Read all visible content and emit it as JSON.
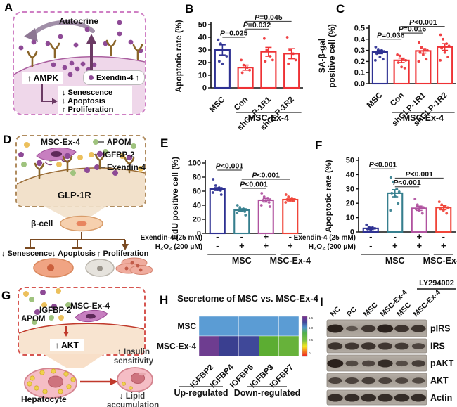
{
  "panel_a": {
    "label": "A",
    "autocrine": "Autocrine",
    "ampk": "↑ AMPK",
    "exendin": "Exendin-4 ↑",
    "effects": [
      "↓ Senescence",
      "↓ Apoptosis",
      "↑ Proliferation"
    ]
  },
  "panel_d": {
    "label": "D",
    "cell": "MSC-Ex-4",
    "legend": [
      "APOM",
      "IGFBP-2",
      "Exendin-4"
    ],
    "legend_colors": [
      "#9fc37e",
      "#ecc05c",
      "#8e4a96"
    ],
    "receptor": "GLP-1R",
    "beta_cell": "β-cell",
    "effects": [
      "↓ Senescence",
      "↓ Apoptosis",
      "↑ Proliferation"
    ]
  },
  "panel_g": {
    "label": "G",
    "igfbp2": "IGFBP-2",
    "apom": "APOM",
    "cell": "MSC-Ex-4",
    "akt": "↑ AKT",
    "hepatocyte": "Hepatocyte",
    "insulin_line1": "↑ Insulin",
    "insulin_line2": "sensitivity",
    "lipid_line1": "↓ Lipid",
    "lipid_line2": "accumulation"
  },
  "panel_labels": {
    "B": "B",
    "C": "C",
    "E": "E",
    "F": "F",
    "H": "H",
    "I": "I"
  },
  "chart_data": [
    {
      "panel": "B",
      "type": "bar",
      "ylabel": "Apoptotic rate (%)",
      "ylim": [
        0,
        50
      ],
      "ytick_vals": [
        0,
        10,
        20,
        30,
        40,
        50
      ],
      "ytick_labels": [
        "0",
        "10",
        "20",
        "30",
        "40",
        "50"
      ],
      "categories": [
        "MSC",
        "Con",
        "shGLP-1R1",
        "shGLP-1R2"
      ],
      "values": [
        30,
        16,
        28.5,
        27
      ],
      "errors": [
        4,
        2,
        3.5,
        4
      ],
      "bar_colors": [
        "#2e3192",
        "#ee3235",
        "#ee3235",
        "#ee3235"
      ],
      "points": [
        [
          38,
          35,
          30,
          25,
          21,
          19
        ],
        [
          22,
          18,
          16,
          14,
          12
        ],
        [
          39,
          30,
          25,
          22,
          21
        ],
        [
          40,
          30,
          27,
          22,
          19
        ]
      ],
      "comparisons": [
        {
          "from": 0,
          "to": 1,
          "label": "P=0.025",
          "y": 40
        },
        {
          "from": 1,
          "to": 2,
          "label": "P=0.032",
          "y": 46.5
        },
        {
          "from": 1,
          "to": 3,
          "label": "P=0.045",
          "y": 52.5
        }
      ],
      "groups": [
        {
          "label": "MSC-Ex-4",
          "from": 1,
          "to": 3
        }
      ]
    },
    {
      "panel": "C",
      "type": "bar",
      "ylabel_lines": [
        "SA-β-gal",
        "positive cell (%)"
      ],
      "ylim": [
        0,
        0.5
      ],
      "ytick_vals": [
        0,
        0.1,
        0.2,
        0.3,
        0.4,
        0.5
      ],
      "ytick_labels": [
        "0.0",
        "0.1",
        "0.2",
        "0.3",
        "0.4",
        "0.5"
      ],
      "categories": [
        "MSC",
        "Con",
        "shGLP-1R1",
        "shGLP-1R2"
      ],
      "values": [
        0.285,
        0.21,
        0.295,
        0.33
      ],
      "errors": [
        0.015,
        0.02,
        0.02,
        0.03
      ],
      "bar_colors": [
        "#2e3192",
        "#ee3235",
        "#ee3235",
        "#ee3235"
      ],
      "points": [
        [
          0.33,
          0.31,
          0.3,
          0.29,
          0.27,
          0.24,
          0.22,
          0.21
        ],
        [
          0.26,
          0.25,
          0.22,
          0.21,
          0.19,
          0.15,
          0.14
        ],
        [
          0.37,
          0.33,
          0.31,
          0.3,
          0.28,
          0.26,
          0.22,
          0.2
        ],
        [
          0.44,
          0.4,
          0.36,
          0.34,
          0.32,
          0.28,
          0.24,
          0.21
        ]
      ],
      "comparisons": [
        {
          "from": 0,
          "to": 1,
          "label": "P=0.036",
          "y": 0.4
        },
        {
          "from": 1,
          "to": 2,
          "label": "P=0.016",
          "y": 0.455
        },
        {
          "from": 1,
          "to": 3,
          "label": "P<0.001",
          "y": 0.515
        }
      ],
      "groups": [
        {
          "label": "MSC-Ex-4",
          "from": 1,
          "to": 3
        }
      ]
    },
    {
      "panel": "E",
      "type": "bar",
      "ylabel": "EdU positive cell (%)",
      "ylim": [
        0,
        100
      ],
      "ytick_vals": [
        0,
        20,
        40,
        60,
        80,
        100
      ],
      "ytick_labels": [
        "0",
        "20",
        "40",
        "60",
        "80",
        "100"
      ],
      "values": [
        63,
        33,
        47,
        48
      ],
      "errors": [
        2,
        2,
        2.5,
        2
      ],
      "bar_colors": [
        "#2e3192",
        "#367f8e",
        "#b0529f",
        "#f04438"
      ],
      "points": [
        [
          77,
          68,
          65,
          64,
          63,
          62,
          61,
          58,
          55
        ],
        [
          40,
          37,
          35,
          34,
          33,
          32,
          31,
          29,
          26
        ],
        [
          57,
          52,
          50,
          48,
          47,
          46,
          44,
          40,
          38
        ],
        [
          55,
          52,
          50,
          49,
          48,
          47,
          46,
          44
        ]
      ],
      "comparisons": [
        {
          "from": 0,
          "to": 1,
          "label": "P<0.001",
          "y": 90
        },
        {
          "from": 1,
          "to": 3,
          "label": "P<0.001",
          "y": 77
        },
        {
          "from": 1,
          "to": 2,
          "label": "P<0.001",
          "y": 64
        }
      ],
      "cond_rows": [
        {
          "label": "Exendin-4 (25 mM)",
          "signs": [
            "-",
            "-",
            "+",
            "-"
          ]
        },
        {
          "label": "H₂O₂ (200 μM)",
          "signs": [
            "-",
            "+",
            "+",
            "+"
          ]
        }
      ],
      "groups": [
        {
          "label": "MSC",
          "from": 0,
          "to": 2
        },
        {
          "label": "MSC-Ex-4",
          "from": 3,
          "to": 3
        }
      ]
    },
    {
      "panel": "F",
      "type": "bar",
      "ylabel": "Apoptotic rate (%)",
      "ylim": [
        0,
        50
      ],
      "ytick_vals": [
        0,
        10,
        20,
        30,
        40,
        50
      ],
      "ytick_labels": [
        "0",
        "10",
        "20",
        "30",
        "40",
        "50"
      ],
      "values": [
        2.5,
        27,
        16.5,
        17
      ],
      "errors": [
        0.8,
        2.5,
        1.5,
        1.5
      ],
      "bar_colors": [
        "#2e3192",
        "#367f8e",
        "#b0529f",
        "#f04438"
      ],
      "points": [
        [
          5,
          3.5,
          3,
          2.5,
          2,
          1.5
        ],
        [
          38,
          35,
          30,
          28,
          27,
          25,
          20,
          15
        ],
        [
          23,
          19,
          17.5,
          17,
          16,
          15,
          13
        ],
        [
          21,
          19,
          18,
          17,
          16,
          15,
          13
        ]
      ],
      "comparisons": [
        {
          "from": 0,
          "to": 1,
          "label": "P<0.001",
          "y": 44
        },
        {
          "from": 1,
          "to": 3,
          "label": "P<0.001",
          "y": 37.5
        },
        {
          "from": 1,
          "to": 2,
          "label": "P<0.001",
          "y": 31.5
        }
      ],
      "cond_rows": [
        {
          "label": "Exendin-4 (25 mM)",
          "signs": [
            "-",
            "-",
            "+",
            "-"
          ]
        },
        {
          "label": "H₂O₂ (200 μM)",
          "signs": [
            "-",
            "+",
            "+",
            "+"
          ]
        }
      ],
      "groups": [
        {
          "label": "MSC",
          "from": 0,
          "to": 2
        },
        {
          "label": "MSC-Ex-4",
          "from": 3,
          "to": 3
        }
      ]
    },
    {
      "panel": "H",
      "type": "heatmap",
      "title": "Secretome of MSC vs. MSC-Ex-4",
      "rows": [
        "MSC",
        "MSC-Ex-4"
      ],
      "columns": [
        "IGFBP2",
        "IGFBP4",
        "IGFBP6",
        "IGFBP3",
        "IGFBP7"
      ],
      "cell_colors": [
        [
          "#5b9cd4",
          "#5b9cd4",
          "#5b9cd4",
          "#5b9cd4",
          "#5b9cd4"
        ],
        [
          "#6e3d90",
          "#3a3f90",
          "#3f4899",
          "#5cad32",
          "#67b23a"
        ]
      ],
      "groups": [
        {
          "label": "Up-regulated",
          "cols": [
            0,
            1,
            2
          ]
        },
        {
          "label": "Down-regulated",
          "cols": [
            3,
            4
          ]
        }
      ],
      "colorbar": {
        "tick_labels": [
          "1.5",
          "1.0",
          "0.5",
          "0"
        ],
        "gradient": [
          "#7b2f8e",
          "#414a9c",
          "#4e97cc",
          "#52b04a",
          "#7dc242",
          "#f4e61d",
          "#f7941d",
          "#ed1c24"
        ],
        "offsets": [
          0,
          0.15,
          0.28,
          0.42,
          0.6,
          0.75,
          0.85,
          1
        ]
      }
    }
  ],
  "blot": {
    "label": "I",
    "inhibitor": "LY294002",
    "lanes": [
      "NC",
      "PC",
      "MSC",
      "MSC-Ex-4",
      "MSC",
      "MSC-Ex-4"
    ],
    "inhibitor_lanes": [
      4,
      5
    ],
    "targets": [
      "pIRS",
      "IRS",
      "pAKT",
      "AKT",
      "Actin"
    ],
    "intensities": [
      [
        1,
        0.3,
        0.7,
        1,
        0.75,
        0.75
      ],
      [
        0.75,
        0.7,
        0.75,
        0.7,
        0.65,
        0.5
      ],
      [
        1,
        0.45,
        0.5,
        0.85,
        0.4,
        0.6
      ],
      [
        0.55,
        0.55,
        0.6,
        0.55,
        0.5,
        0.45
      ],
      [
        0.85,
        0.85,
        0.85,
        0.85,
        0.85,
        0.85
      ]
    ]
  }
}
